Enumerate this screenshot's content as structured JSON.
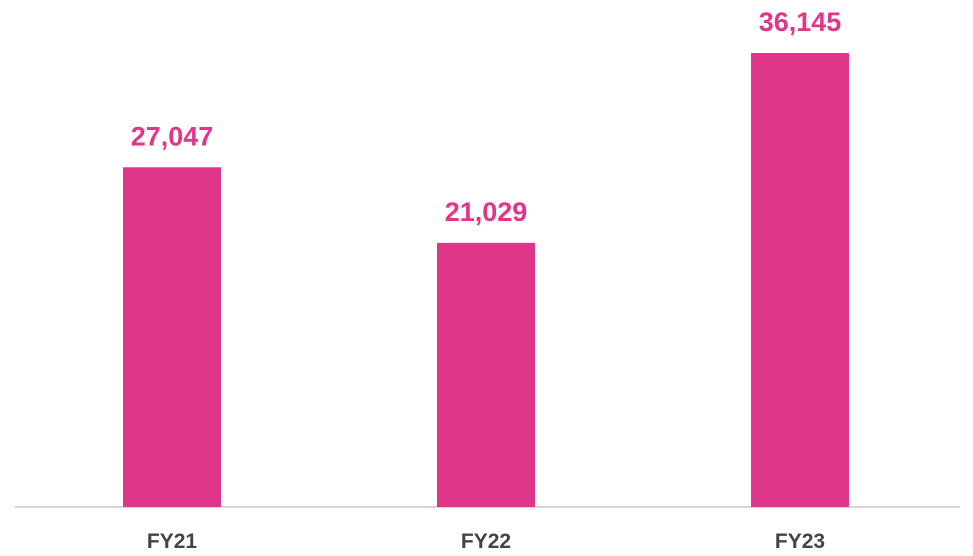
{
  "chart_data": {
    "type": "bar",
    "categories": [
      "FY21",
      "FY22",
      "FY23"
    ],
    "values": [
      27047,
      21029,
      36145
    ],
    "value_labels": [
      "27,047",
      "21,029",
      "36,145"
    ],
    "color": "#e0368a"
  }
}
